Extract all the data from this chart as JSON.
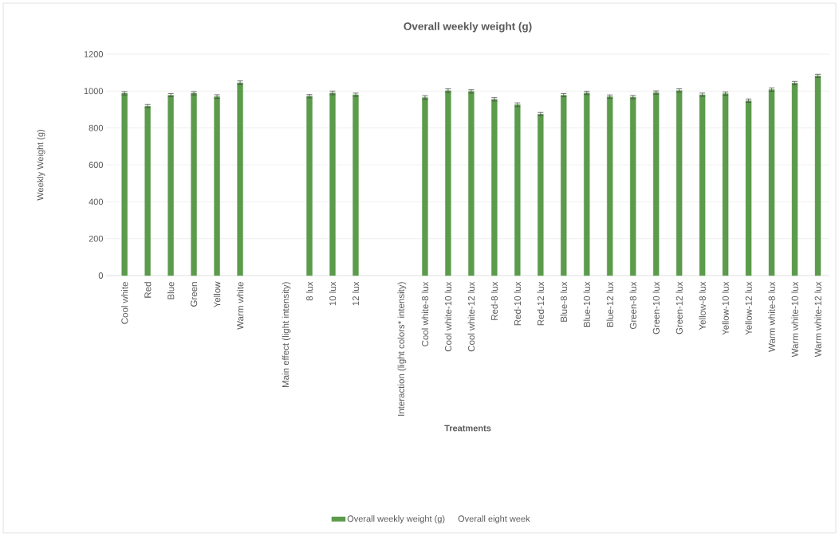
{
  "chart_data": {
    "type": "bar",
    "title": "Overall weekly weight (g)",
    "xlabel": "Treatments",
    "ylabel": "Weekly Weight (g)",
    "categories": [
      "Cool white",
      "Red",
      "Blue",
      "Green",
      "Yellow",
      "Warm white",
      null,
      "Main effect (light intensity)",
      "8 lux",
      "10 lux",
      "12 lux",
      null,
      "Interaction (light colors* intensity)",
      "Cool white-8 lux",
      "Cool white-10 lux",
      "Cool white-12 lux",
      "Red-8 lux",
      "Red-10 lux",
      "Red-12 lux",
      "Blue-8 lux",
      "Blue-10 lux",
      "Blue-12 lux",
      "Green-8 lux",
      "Green-10 lux",
      "Green-12 lux",
      "Yellow-8 lux",
      "Yellow-10 lux",
      "Yellow-12 lux",
      "Warm white-8 lux",
      "Warm white-10 lux",
      "Warm white-12 lux"
    ],
    "series": [
      {
        "name": "Overall weekly weight (g)",
        "color": "#5b9b4b",
        "values": [
          988,
          918,
          978,
          988,
          970,
          1045,
          null,
          null,
          972,
          990,
          980,
          null,
          null,
          965,
          1002,
          998,
          955,
          926,
          875,
          978,
          990,
          970,
          967,
          992,
          1003,
          980,
          986,
          948,
          1008,
          1043,
          1082
        ],
        "errors": [
          9,
          9,
          9,
          9,
          10,
          10,
          null,
          null,
          9,
          10,
          9,
          null,
          null,
          10,
          10,
          9,
          9,
          10,
          9,
          9,
          9,
          9,
          9,
          9,
          9,
          9,
          9,
          9,
          9,
          9,
          9
        ]
      },
      {
        "name": "Overall eight week",
        "values": [
          null,
          null,
          null,
          null,
          null,
          null,
          null,
          null,
          null,
          null,
          null,
          null,
          null,
          null,
          null,
          null,
          null,
          null,
          null,
          null,
          null,
          null,
          null,
          null,
          null,
          null,
          null,
          null,
          null,
          null,
          null
        ]
      }
    ],
    "ylim": [
      0,
      1200
    ],
    "yticks": [
      0,
      200,
      400,
      600,
      800,
      1000,
      1200
    ],
    "grid": "y",
    "legend": "bottom"
  }
}
